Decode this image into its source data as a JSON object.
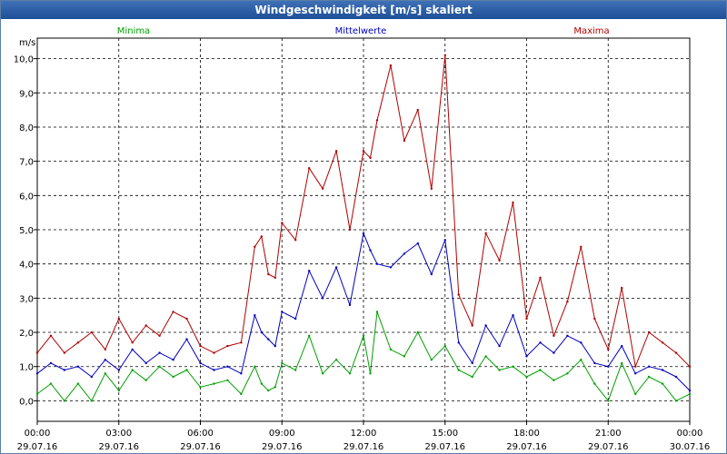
{
  "window": {
    "title": "Windgeschwindigkeit [m/s] skaliert"
  },
  "chart_data": {
    "type": "line",
    "title": "Windgeschwindigkeit [m/s] skaliert",
    "ylabel": "m/s",
    "xlabel": "",
    "ylim": [
      -0.6,
      10.6
    ],
    "xlim": [
      0,
      24
    ],
    "grid": true,
    "yticks": [
      0,
      1,
      2,
      3,
      4,
      5,
      6,
      7,
      8,
      9,
      10
    ],
    "ytick_labels": [
      "0,0",
      "1,0",
      "2,0",
      "3,0",
      "4,0",
      "5,0",
      "6,0",
      "7,0",
      "8,0",
      "9,0",
      "10,0"
    ],
    "xticks": [
      0,
      3,
      6,
      9,
      12,
      15,
      18,
      21,
      24
    ],
    "xtick_time": [
      "00:00",
      "03:00",
      "06:00",
      "09:00",
      "12:00",
      "15:00",
      "18:00",
      "21:00",
      "00:00"
    ],
    "xtick_date": [
      "29.07.16",
      "29.07.16",
      "29.07.16",
      "29.07.16",
      "29.07.16",
      "29.07.16",
      "29.07.16",
      "29.07.16",
      "30.07.16"
    ],
    "colors": {
      "Minima": "#00a000",
      "Mittelwerte": "#0000c0",
      "Maxima": "#b00000"
    },
    "series": [
      {
        "name": "Maxima",
        "x": [
          0,
          0.5,
          1,
          1.5,
          2,
          2.5,
          3,
          3.5,
          4,
          4.5,
          5,
          5.5,
          6,
          6.5,
          7,
          7.5,
          8,
          8.25,
          8.5,
          8.75,
          9,
          9.5,
          10,
          10.5,
          11,
          11.5,
          12,
          12.25,
          12.5,
          13,
          13.5,
          14,
          14.5,
          15,
          15.5,
          16,
          16.5,
          17,
          17.5,
          18,
          18.5,
          19,
          19.5,
          20,
          20.5,
          21,
          21.5,
          22,
          22.5,
          23,
          23.5,
          24
        ],
        "values": [
          1.4,
          1.9,
          1.4,
          1.7,
          2.0,
          1.5,
          2.4,
          1.7,
          2.2,
          1.9,
          2.6,
          2.4,
          1.6,
          1.4,
          1.6,
          1.7,
          4.5,
          4.8,
          3.7,
          3.6,
          5.2,
          4.7,
          6.8,
          6.2,
          7.3,
          5.0,
          7.3,
          7.1,
          8.2,
          9.8,
          7.6,
          8.5,
          6.2,
          10.1,
          3.1,
          2.2,
          4.9,
          4.1,
          5.8,
          2.4,
          3.6,
          1.9,
          2.9,
          4.5,
          2.4,
          1.5,
          3.3,
          1.0,
          2.0,
          1.7,
          1.4,
          1.0
        ]
      },
      {
        "name": "Mittelwerte",
        "x": [
          0,
          0.5,
          1,
          1.5,
          2,
          2.5,
          3,
          3.5,
          4,
          4.5,
          5,
          5.5,
          6,
          6.5,
          7,
          7.5,
          8,
          8.25,
          8.5,
          8.75,
          9,
          9.5,
          10,
          10.5,
          11,
          11.5,
          12,
          12.25,
          12.5,
          13,
          13.5,
          14,
          14.5,
          15,
          15.5,
          16,
          16.5,
          17,
          17.5,
          18,
          18.5,
          19,
          19.5,
          20,
          20.5,
          21,
          21.5,
          22,
          22.5,
          23,
          23.5,
          24
        ],
        "values": [
          0.8,
          1.1,
          0.9,
          1.0,
          0.7,
          1.2,
          0.9,
          1.5,
          1.1,
          1.4,
          1.2,
          1.8,
          1.1,
          0.9,
          1.0,
          0.8,
          2.5,
          2.0,
          1.8,
          1.6,
          2.6,
          2.4,
          3.8,
          3.0,
          3.9,
          2.8,
          4.9,
          4.4,
          4.0,
          3.9,
          4.3,
          4.6,
          3.7,
          4.7,
          1.7,
          1.1,
          2.2,
          1.6,
          2.5,
          1.3,
          1.7,
          1.4,
          1.9,
          1.7,
          1.1,
          1.0,
          1.6,
          0.8,
          1.0,
          0.9,
          0.7,
          0.3
        ]
      },
      {
        "name": "Minima",
        "x": [
          0,
          0.5,
          1,
          1.5,
          2,
          2.5,
          3,
          3.5,
          4,
          4.5,
          5,
          5.5,
          6,
          6.5,
          7,
          7.5,
          8,
          8.25,
          8.5,
          8.75,
          9,
          9.5,
          10,
          10.5,
          11,
          11.5,
          12,
          12.25,
          12.5,
          13,
          13.5,
          14,
          14.5,
          15,
          15.5,
          16,
          16.5,
          17,
          17.5,
          18,
          18.5,
          19,
          19.5,
          20,
          20.5,
          21,
          21.5,
          22,
          22.5,
          23,
          23.5,
          24
        ],
        "values": [
          0.2,
          0.5,
          0.0,
          0.5,
          0.0,
          0.8,
          0.3,
          0.9,
          0.6,
          1.0,
          0.7,
          0.9,
          0.4,
          0.5,
          0.6,
          0.2,
          1.0,
          0.5,
          0.3,
          0.4,
          1.1,
          0.9,
          1.9,
          0.8,
          1.2,
          0.8,
          1.9,
          0.8,
          2.6,
          1.5,
          1.3,
          2.0,
          1.2,
          1.6,
          0.9,
          0.7,
          1.3,
          0.9,
          1.0,
          0.7,
          0.9,
          0.6,
          0.8,
          1.2,
          0.5,
          0.0,
          1.1,
          0.2,
          0.7,
          0.5,
          0.0,
          0.2
        ]
      }
    ]
  }
}
